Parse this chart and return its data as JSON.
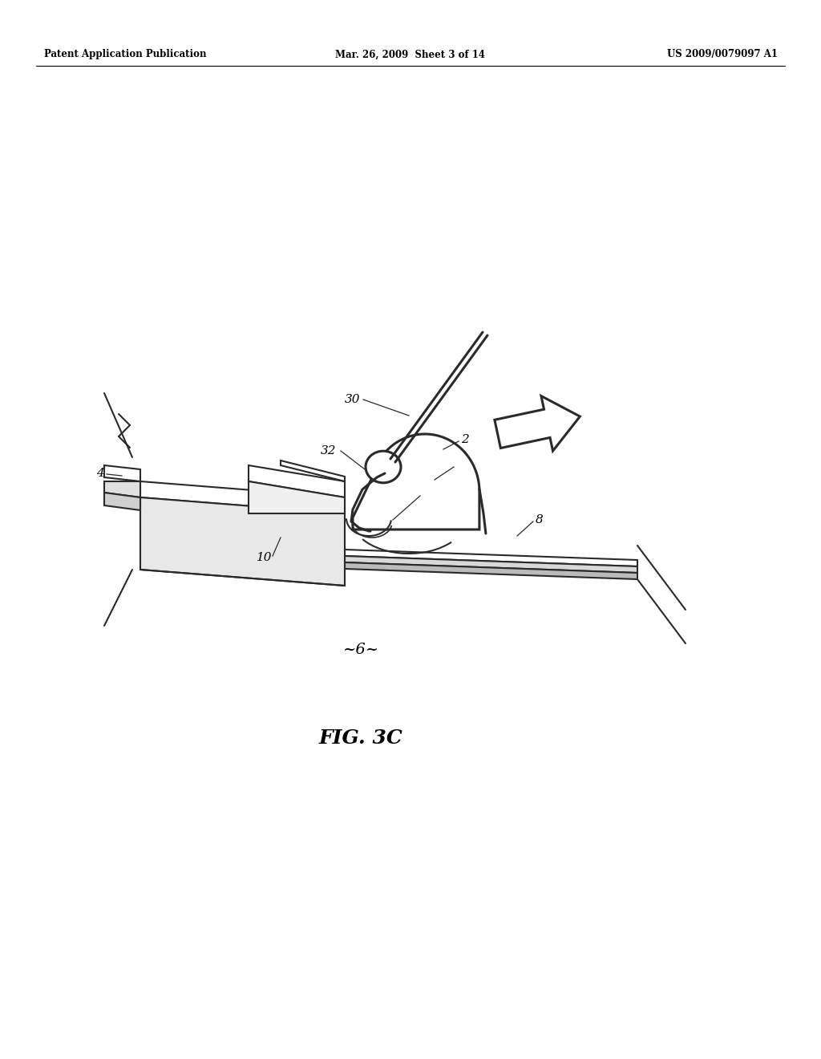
{
  "bg_color": "#ffffff",
  "line_color": "#2a2a2a",
  "header_left": "Patent Application Publication",
  "header_mid": "Mar. 26, 2009  Sheet 3 of 14",
  "header_right": "US 2009/0079097 A1",
  "fig_label": "FIG. 3C",
  "label_6": "~6~",
  "lw_main": 1.5,
  "lw_thick": 2.2,
  "lw_tool": 2.8
}
